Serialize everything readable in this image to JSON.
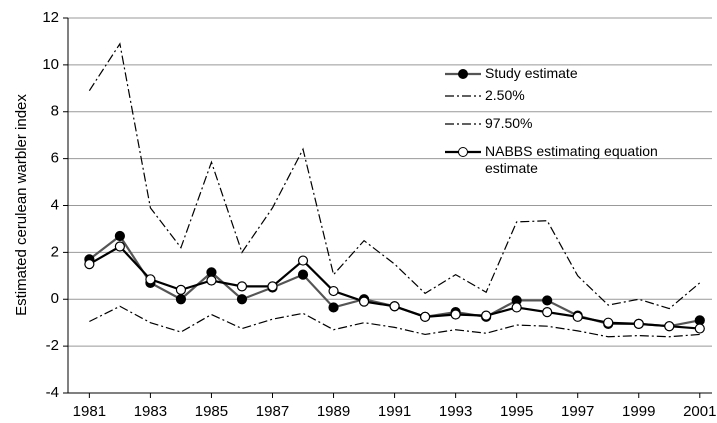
{
  "chart_data": {
    "type": "line",
    "y_label": "Estimated cerulean warbler index",
    "x": [
      1981,
      1982,
      1983,
      1984,
      1985,
      1986,
      1987,
      1988,
      1989,
      1990,
      1991,
      1992,
      1993,
      1994,
      1995,
      1996,
      1997,
      1998,
      1999,
      2000,
      2001
    ],
    "series": [
      {
        "name": "Study estimate",
        "color": "#555555",
        "marker": "filled",
        "dash": "solid",
        "values": [
          1.7,
          2.7,
          0.7,
          0.0,
          1.15,
          0.0,
          0.5,
          1.05,
          -0.35,
          0.0,
          -0.3,
          -0.75,
          -0.55,
          -0.75,
          -0.05,
          -0.05,
          -0.7,
          -1.05,
          -1.05,
          -1.15,
          -0.9
        ]
      },
      {
        "name": "2.50%",
        "color": "#000000",
        "marker": "none",
        "dash": "dashdot",
        "values": [
          -0.95,
          -0.3,
          -1.0,
          -1.4,
          -0.65,
          -1.25,
          -0.85,
          -0.6,
          -1.3,
          -1.0,
          -1.2,
          -1.5,
          -1.3,
          -1.45,
          -1.1,
          -1.15,
          -1.35,
          -1.6,
          -1.55,
          -1.6,
          -1.5
        ]
      },
      {
        "name": "97.50%",
        "color": "#000000",
        "marker": "none",
        "dash": "dashdot",
        "values": [
          8.9,
          10.9,
          3.9,
          2.2,
          5.85,
          2.0,
          3.9,
          6.4,
          1.05,
          2.5,
          1.5,
          0.25,
          1.05,
          0.3,
          3.3,
          3.35,
          1.0,
          -0.25,
          0.0,
          -0.4,
          0.7
        ]
      },
      {
        "name": "NABBS estimating equation estimate",
        "color": "#000000",
        "marker": "open",
        "dash": "solid",
        "values": [
          1.5,
          2.25,
          0.85,
          0.4,
          0.8,
          0.55,
          0.55,
          1.65,
          0.35,
          -0.1,
          -0.3,
          -0.75,
          -0.65,
          -0.7,
          -0.35,
          -0.55,
          -0.75,
          -1.0,
          -1.05,
          -1.15,
          -1.25
        ]
      }
    ],
    "xlim": [
      1980.3,
      2001.4
    ],
    "xticks": [
      1981,
      1983,
      1985,
      1987,
      1989,
      1991,
      1993,
      1995,
      1997,
      1999,
      2001
    ],
    "ylim": [
      -4,
      12
    ],
    "yticks": [
      -4,
      -2,
      0,
      2,
      4,
      6,
      8,
      10,
      12
    ],
    "grid": true,
    "legend": "upper-right"
  }
}
